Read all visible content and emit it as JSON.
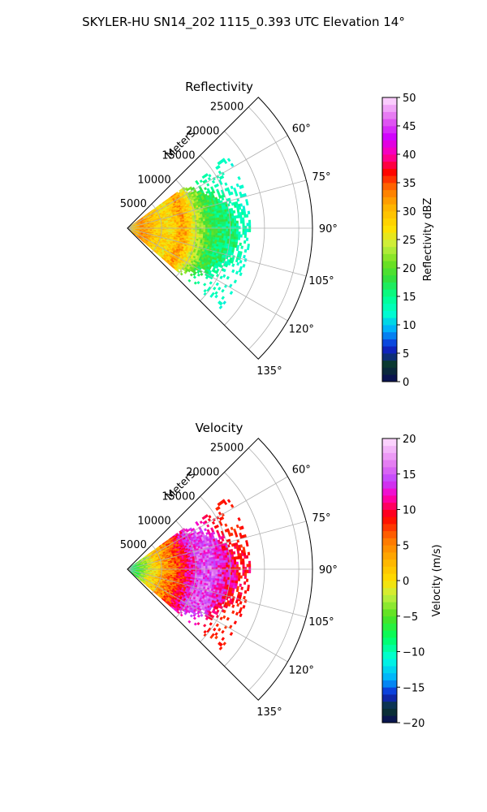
{
  "figure_title": "SKYLER-HU  SN14_202  1115_0.393 UTC Elevation 14°",
  "chart_data": [
    {
      "type": "polar-sector",
      "title": "Reflectivity",
      "radial_label": "Meters",
      "radial_ticks": [
        5000,
        10000,
        15000,
        20000,
        25000
      ],
      "radial_range": [
        0,
        27000
      ],
      "azimuth_range_deg": [
        45,
        135
      ],
      "azimuth_ticks": [
        "60°",
        "75°",
        "90°",
        "105°",
        "120°",
        "135°"
      ],
      "data_extent_deg": [
        54,
        130
      ],
      "data_max_range_m": 18000,
      "colorbar": {
        "label": "Reflectivity dBZ",
        "range": [
          0,
          50
        ],
        "ticks": [
          "0",
          "5",
          "10",
          "15",
          "20",
          "25",
          "30",
          "35",
          "40",
          "45",
          "50"
        ],
        "stops": [
          [
            0,
            "#0a0a5a"
          ],
          [
            3,
            "#0a3a2a"
          ],
          [
            6,
            "#1020d0"
          ],
          [
            9,
            "#00a8ff"
          ],
          [
            12,
            "#00ffd0"
          ],
          [
            15,
            "#00ff90"
          ],
          [
            18,
            "#30e040"
          ],
          [
            21,
            "#70e020"
          ],
          [
            24,
            "#c8f040"
          ],
          [
            27,
            "#ffe000"
          ],
          [
            31,
            "#ffb000"
          ],
          [
            34,
            "#ff7000"
          ],
          [
            37,
            "#ff0000"
          ],
          [
            40,
            "#ff00b0"
          ],
          [
            43,
            "#d000ff"
          ],
          [
            46,
            "#e060f0"
          ],
          [
            50,
            "#ffe0ff"
          ]
        ]
      },
      "field_profile": [
        [
          0,
          26
        ],
        [
          2000,
          33
        ],
        [
          4000,
          29
        ],
        [
          6000,
          27
        ],
        [
          8000,
          32
        ],
        [
          10000,
          24
        ],
        [
          12000,
          18
        ],
        [
          14000,
          16
        ],
        [
          16000,
          15
        ],
        [
          18000,
          14
        ]
      ]
    },
    {
      "type": "polar-sector",
      "title": "Velocity",
      "radial_label": "Meters",
      "radial_ticks": [
        5000,
        10000,
        15000,
        20000,
        25000
      ],
      "radial_range": [
        0,
        27000
      ],
      "azimuth_range_deg": [
        45,
        135
      ],
      "azimuth_ticks": [
        "60°",
        "75°",
        "90°",
        "105°",
        "120°",
        "135°"
      ],
      "data_extent_deg": [
        54,
        130
      ],
      "data_max_range_m": 18000,
      "colorbar": {
        "label": "Velocity (m/s)",
        "range": [
          -20,
          20
        ],
        "ticks": [
          "−20",
          "−15",
          "−10",
          "−5",
          "0",
          "5",
          "10",
          "15",
          "20"
        ],
        "stops": [
          [
            -20,
            "#0a0a5a"
          ],
          [
            -18,
            "#0a3a2a"
          ],
          [
            -16,
            "#1020d0"
          ],
          [
            -14,
            "#00a8ff"
          ],
          [
            -11,
            "#00ffe0"
          ],
          [
            -8,
            "#00ff60"
          ],
          [
            -5,
            "#50e020"
          ],
          [
            -2,
            "#c8f040"
          ],
          [
            0,
            "#ffe000"
          ],
          [
            3,
            "#ffb000"
          ],
          [
            6,
            "#ff7000"
          ],
          [
            9,
            "#ff0000"
          ],
          [
            12,
            "#ff00c0"
          ],
          [
            14,
            "#c040ff"
          ],
          [
            16,
            "#e070f0"
          ],
          [
            20,
            "#ffe0ff"
          ]
        ]
      },
      "field_profile": [
        [
          0,
          -10
        ],
        [
          2000,
          -4
        ],
        [
          4000,
          1
        ],
        [
          6000,
          5
        ],
        [
          8000,
          9
        ],
        [
          10000,
          14
        ],
        [
          12000,
          15
        ],
        [
          14000,
          12
        ],
        [
          16000,
          10
        ],
        [
          18000,
          11
        ]
      ]
    }
  ]
}
